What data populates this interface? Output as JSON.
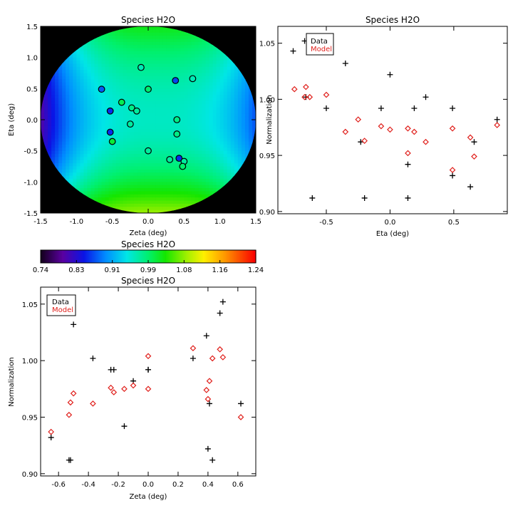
{
  "colors": {
    "data": "#000000",
    "model": "#e0201c",
    "background": "#000000"
  },
  "chart_data": [
    {
      "id": "map",
      "type": "heatmap",
      "title": "Species H2O",
      "xlabel": "Zeta (deg)",
      "ylabel": "Eta (deg)",
      "xlim": [
        -1.5,
        1.5
      ],
      "ylim": [
        -1.5,
        1.5
      ],
      "xticks": [
        "-1.5",
        "-1.0",
        "-0.5",
        "0.0",
        "0.5",
        "1.0",
        "1.5"
      ],
      "yticks": [
        "-1.5",
        "-1.0",
        "-0.5",
        "0.0",
        "0.5",
        "1.0",
        "1.5"
      ],
      "field_radius_deg": 1.5,
      "points": [
        {
          "zeta": -0.1,
          "eta": 0.84,
          "value": 0.96
        },
        {
          "zeta": -0.65,
          "eta": 0.49,
          "value": 0.87
        },
        {
          "zeta": 0.0,
          "eta": 0.49,
          "value": 0.99
        },
        {
          "zeta": 0.38,
          "eta": 0.63,
          "value": 0.86
        },
        {
          "zeta": 0.62,
          "eta": 0.66,
          "value": 0.96
        },
        {
          "zeta": -0.37,
          "eta": 0.28,
          "value": 1.0
        },
        {
          "zeta": -0.23,
          "eta": 0.19,
          "value": 0.98
        },
        {
          "zeta": -0.16,
          "eta": 0.14,
          "value": 0.97
        },
        {
          "zeta": -0.53,
          "eta": 0.14,
          "value": 0.85
        },
        {
          "zeta": -0.25,
          "eta": -0.07,
          "value": 0.97
        },
        {
          "zeta": 0.4,
          "eta": 0.0,
          "value": 0.98
        },
        {
          "zeta": 0.4,
          "eta": -0.23,
          "value": 0.98
        },
        {
          "zeta": -0.53,
          "eta": -0.2,
          "value": 0.85
        },
        {
          "zeta": -0.5,
          "eta": -0.35,
          "value": 1.01
        },
        {
          "zeta": 0.0,
          "eta": -0.5,
          "value": 0.97
        },
        {
          "zeta": 0.3,
          "eta": -0.64,
          "value": 0.97
        },
        {
          "zeta": 0.43,
          "eta": -0.62,
          "value": 0.85
        },
        {
          "zeta": 0.5,
          "eta": -0.67,
          "value": 0.97
        },
        {
          "zeta": 0.48,
          "eta": -0.75,
          "value": 0.99
        }
      ]
    },
    {
      "id": "eta",
      "type": "scatter",
      "title": "Species H2O",
      "xlabel": "Eta (deg)",
      "ylabel": "Normalization",
      "xlim": [
        -0.88,
        0.92
      ],
      "ylim": [
        0.898,
        1.065
      ],
      "xticks": [
        {
          "v": -0.5,
          "label": "-0.5"
        },
        {
          "v": 0.0,
          "label": "0.0"
        },
        {
          "v": 0.5,
          "label": "0.5"
        }
      ],
      "yticks": [
        {
          "v": 0.9,
          "label": "0.90"
        },
        {
          "v": 0.95,
          "label": "0.95"
        },
        {
          "v": 1.0,
          "label": "1.00"
        },
        {
          "v": 1.05,
          "label": "1.05"
        }
      ],
      "legend": {
        "position": "top-left",
        "entries": [
          "Data",
          "Model"
        ]
      },
      "series": [
        {
          "name": "Data",
          "marker": "plus",
          "points": [
            [
              -0.76,
              1.043
            ],
            [
              -0.67,
              1.052
            ],
            [
              -0.66,
              1.002
            ],
            [
              -0.61,
              0.912
            ],
            [
              -0.5,
              0.992
            ],
            [
              -0.35,
              1.032
            ],
            [
              -0.23,
              0.962
            ],
            [
              -0.2,
              0.912
            ],
            [
              -0.07,
              0.992
            ],
            [
              0.0,
              1.022
            ],
            [
              0.14,
              0.942
            ],
            [
              0.14,
              0.912
            ],
            [
              0.19,
              0.992
            ],
            [
              0.28,
              1.002
            ],
            [
              0.49,
              0.992
            ],
            [
              0.49,
              0.932
            ],
            [
              0.63,
              0.922
            ],
            [
              0.66,
              0.962
            ],
            [
              0.84,
              0.982
            ]
          ]
        },
        {
          "name": "Model",
          "marker": "diamond",
          "points": [
            [
              -0.75,
              1.009
            ],
            [
              -0.67,
              1.002
            ],
            [
              -0.66,
              1.011
            ],
            [
              -0.63,
              1.002
            ],
            [
              -0.5,
              1.004
            ],
            [
              -0.35,
              0.971
            ],
            [
              -0.25,
              0.982
            ],
            [
              -0.2,
              0.963
            ],
            [
              -0.07,
              0.976
            ],
            [
              0.0,
              0.973
            ],
            [
              0.14,
              0.974
            ],
            [
              0.14,
              0.952
            ],
            [
              0.19,
              0.971
            ],
            [
              0.28,
              0.962
            ],
            [
              0.49,
              0.974
            ],
            [
              0.49,
              0.937
            ],
            [
              0.63,
              0.966
            ],
            [
              0.66,
              0.949
            ],
            [
              0.84,
              0.977
            ]
          ]
        }
      ]
    },
    {
      "id": "colorbar",
      "type": "heatmap",
      "title": "Species H2O",
      "range": [
        0.74,
        1.24
      ],
      "tick_labels": [
        "0.74",
        "0.83",
        "0.91",
        "0.99",
        "1.08",
        "1.16",
        "1.24"
      ]
    },
    {
      "id": "zeta",
      "type": "scatter",
      "title": "Species H2O",
      "xlabel": "Zeta (deg)",
      "ylabel": "Normalization",
      "xlim": [
        -0.72,
        0.72
      ],
      "ylim": [
        0.898,
        1.065
      ],
      "xticks": [
        {
          "v": -0.6,
          "label": "-0.6"
        },
        {
          "v": -0.4,
          "label": "-0.4"
        },
        {
          "v": -0.2,
          "label": "-0.2"
        },
        {
          "v": 0.0,
          "label": "0.0"
        },
        {
          "v": 0.2,
          "label": "0.2"
        },
        {
          "v": 0.4,
          "label": "0.4"
        },
        {
          "v": 0.6,
          "label": "0.6"
        }
      ],
      "yticks": [
        {
          "v": 0.9,
          "label": "0.90"
        },
        {
          "v": 0.95,
          "label": "0.95"
        },
        {
          "v": 1.0,
          "label": "1.00"
        },
        {
          "v": 1.05,
          "label": "1.05"
        }
      ],
      "legend": {
        "position": "top-left",
        "entries": [
          "Data",
          "Model"
        ]
      },
      "series": [
        {
          "name": "Data",
          "marker": "plus",
          "points": [
            [
              -0.65,
              0.932
            ],
            [
              -0.53,
              0.912
            ],
            [
              -0.52,
              0.912
            ],
            [
              -0.5,
              1.032
            ],
            [
              -0.37,
              1.002
            ],
            [
              -0.25,
              0.992
            ],
            [
              -0.23,
              0.992
            ],
            [
              -0.1,
              0.982
            ],
            [
              -0.16,
              0.942
            ],
            [
              0.0,
              0.992
            ],
            [
              0.0,
              0.992
            ],
            [
              0.3,
              1.002
            ],
            [
              0.39,
              1.022
            ],
            [
              0.4,
              0.922
            ],
            [
              0.41,
              0.962
            ],
            [
              0.43,
              0.912
            ],
            [
              0.48,
              1.042
            ],
            [
              0.5,
              1.052
            ],
            [
              0.62,
              0.962
            ]
          ]
        },
        {
          "name": "Model",
          "marker": "diamond",
          "points": [
            [
              -0.65,
              0.937
            ],
            [
              -0.53,
              0.952
            ],
            [
              -0.52,
              0.963
            ],
            [
              -0.5,
              0.971
            ],
            [
              -0.37,
              0.962
            ],
            [
              -0.25,
              0.976
            ],
            [
              -0.23,
              0.972
            ],
            [
              -0.16,
              0.975
            ],
            [
              -0.1,
              0.978
            ],
            [
              0.0,
              1.004
            ],
            [
              0.0,
              0.975
            ],
            [
              0.3,
              1.011
            ],
            [
              0.39,
              0.974
            ],
            [
              0.4,
              0.966
            ],
            [
              0.41,
              0.982
            ],
            [
              0.43,
              1.002
            ],
            [
              0.48,
              1.01
            ],
            [
              0.5,
              1.003
            ],
            [
              0.62,
              0.95
            ]
          ]
        }
      ]
    }
  ]
}
